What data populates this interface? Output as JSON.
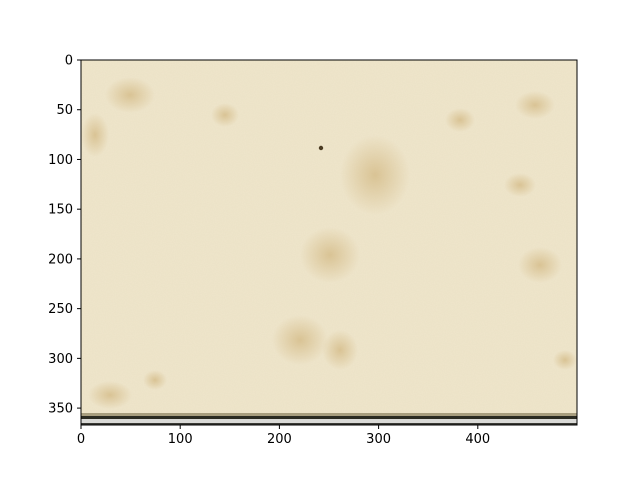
{
  "figure": {
    "kind": "image-axes",
    "xlim": [
      0,
      500
    ],
    "ylim": [
      0,
      367
    ],
    "y_inverted": true,
    "x_ticks": [
      0,
      100,
      200,
      300,
      400
    ],
    "y_ticks": [
      0,
      50,
      100,
      150,
      200,
      250,
      300,
      350
    ],
    "xlabel": "",
    "ylabel": "",
    "title": ""
  },
  "image": {
    "description": "aged cream parchment texture with faint brown foxing spots and a dark strip along the bottom edge",
    "base_color": "#efe6cc",
    "stain_color": "#c9a96a",
    "bottom_strip_color": "#2b2b22"
  }
}
